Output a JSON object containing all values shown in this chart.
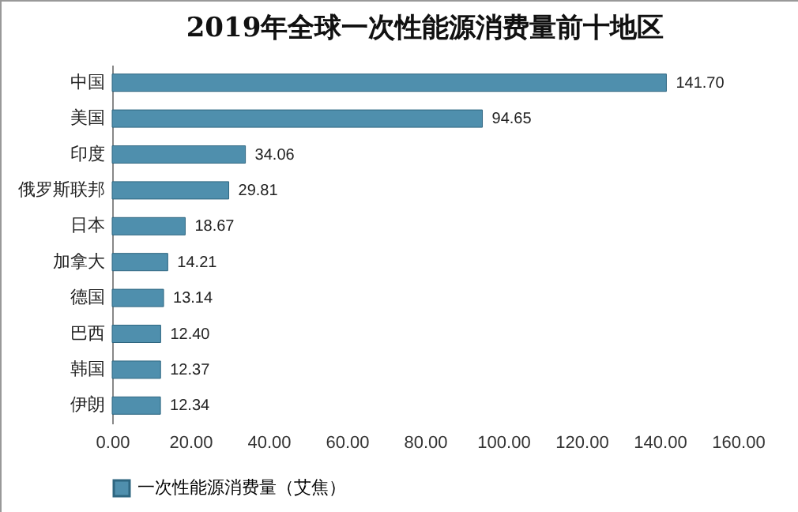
{
  "chart_data": {
    "type": "bar",
    "orientation": "horizontal",
    "title": "2019年全球一次性能源消费量前十地区",
    "categories": [
      "中国",
      "美国",
      "印度",
      "俄罗斯联邦",
      "日本",
      "加拿大",
      "德国",
      "巴西",
      "韩国",
      "伊朗"
    ],
    "series": [
      {
        "name": "一次性能源消费量（艾焦）",
        "color": "#4f8fad",
        "values": [
          141.7,
          94.65,
          34.06,
          29.81,
          18.67,
          14.21,
          13.14,
          12.4,
          12.37,
          12.34
        ],
        "value_labels": [
          "141.70",
          "94.65",
          "34.06",
          "29.81",
          "18.67",
          "14.21",
          "13.14",
          "12.40",
          "12.37",
          "12.34"
        ]
      }
    ],
    "xlim": [
      0,
      160
    ],
    "xticks": [
      {
        "value": 0,
        "label": "0.00"
      },
      {
        "value": 20,
        "label": "20.00"
      },
      {
        "value": 40,
        "label": "40.00"
      },
      {
        "value": 60,
        "label": "60.00"
      },
      {
        "value": 80,
        "label": "80.00"
      },
      {
        "value": 100,
        "label": "100.00"
      },
      {
        "value": 120,
        "label": "120.00"
      },
      {
        "value": 140,
        "label": "140.00"
      },
      {
        "value": 160,
        "label": "160.00"
      }
    ],
    "grid": false,
    "legend": "bottom"
  }
}
